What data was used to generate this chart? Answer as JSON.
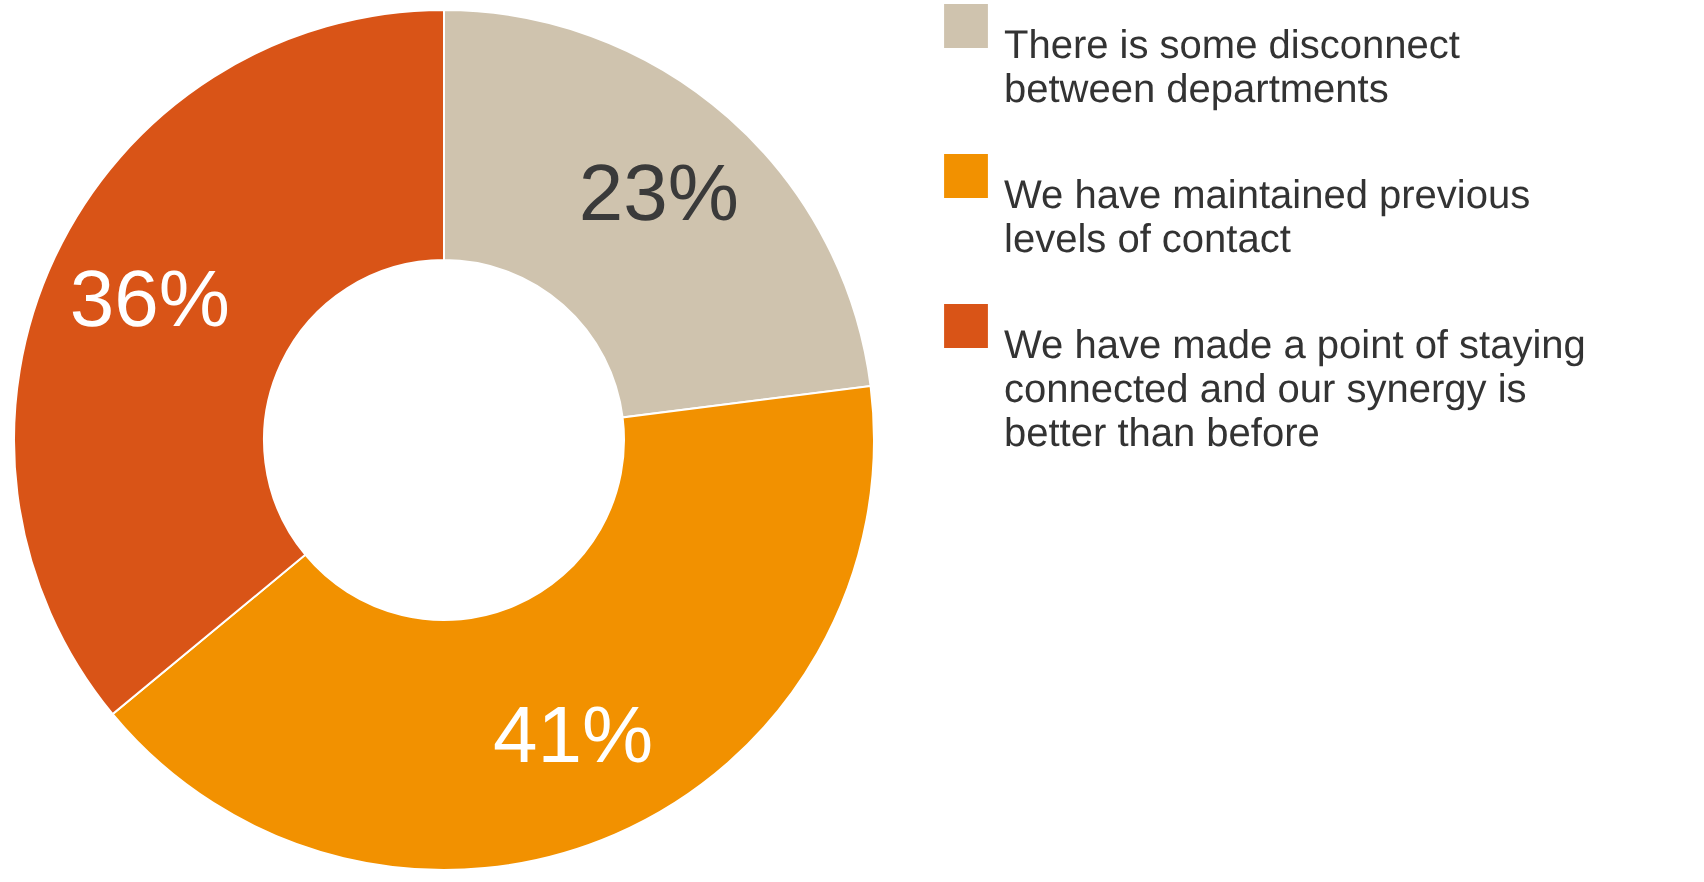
{
  "chart_data": {
    "type": "donut",
    "categories": [
      "There is some disconnect between departments",
      "We have maintained previous levels of contact",
      "We have made a point of staying connected and our synergy is better than before"
    ],
    "values": [
      23,
      41,
      36
    ],
    "colors": [
      "#cfc3ae",
      "#f29100",
      "#d95417"
    ],
    "value_labels": [
      "23%",
      "41%",
      "36%"
    ],
    "legend": "right"
  }
}
